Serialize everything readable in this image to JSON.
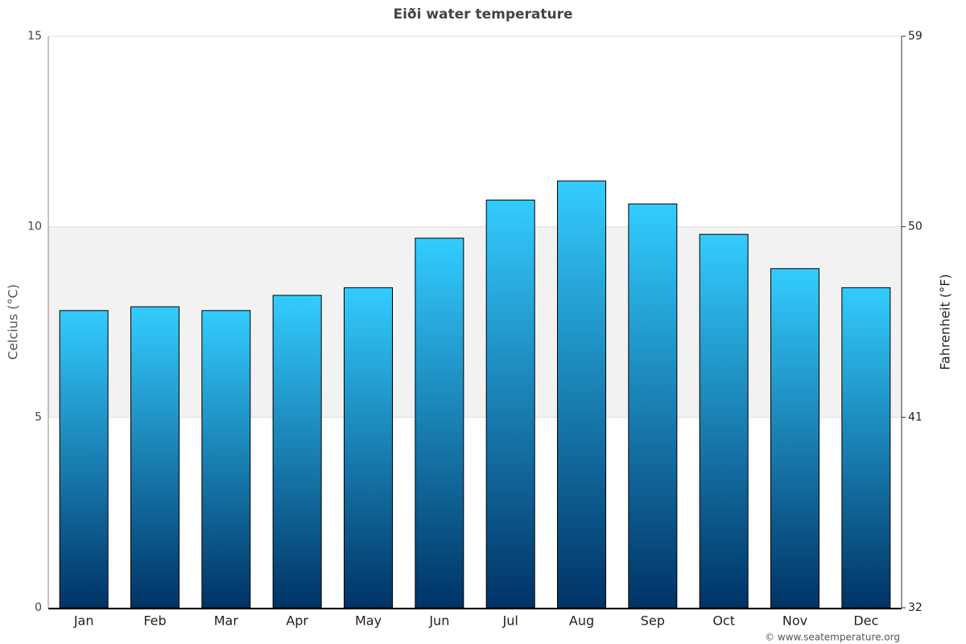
{
  "chart_data": {
    "type": "bar",
    "title": "Eiði water temperature",
    "categories": [
      "Jan",
      "Feb",
      "Mar",
      "Apr",
      "May",
      "Jun",
      "Jul",
      "Aug",
      "Sep",
      "Oct",
      "Nov",
      "Dec"
    ],
    "values": [
      7.8,
      7.9,
      7.8,
      8.2,
      8.4,
      9.7,
      10.7,
      11.2,
      10.6,
      9.8,
      8.9,
      8.4
    ],
    "gradient": [
      "#33ccff",
      "#003366"
    ],
    "ylabel": "Celcius (°C)",
    "y2label": "Fahrenheit (°F)",
    "ylim": [
      0,
      15
    ],
    "yticks": [
      0,
      5,
      10,
      15
    ],
    "y2lim": [
      32,
      59
    ],
    "y2ticks": [
      32,
      41,
      50,
      59
    ],
    "highlight_band": [
      5,
      10
    ],
    "grid": true,
    "credit": "© www.seatemperature.org"
  }
}
